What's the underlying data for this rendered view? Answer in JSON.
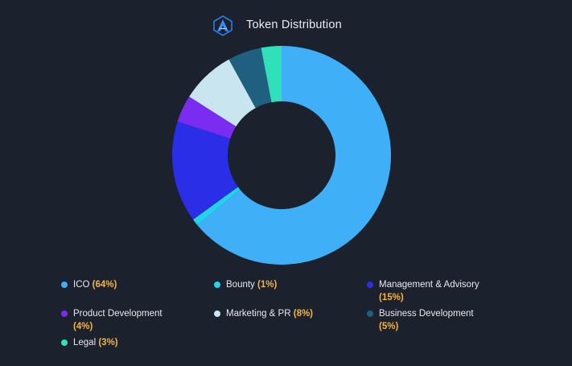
{
  "header": {
    "title": "Token Distribution",
    "logo_icon": "arrow-triangle-logo-icon"
  },
  "chart_data": {
    "type": "pie",
    "title": "Token Distribution",
    "categories": [
      "ICO",
      "Bounty",
      "Management & Advisory",
      "Product Development",
      "Marketing & PR",
      "Business Development",
      "Legal"
    ],
    "values": [
      64,
      1,
      15,
      4,
      8,
      5,
      3
    ],
    "colors": [
      "#3fb0f7",
      "#22d3ee",
      "#2a2ee6",
      "#7a2cf0",
      "#c9e6f0",
      "#1f5f7f",
      "#2fe0b8"
    ],
    "legend_position": "bottom",
    "donut": true
  },
  "legend": [
    {
      "label": "ICO",
      "pct": "(64%)",
      "color": "#3fb0f7"
    },
    {
      "label": "Bounty",
      "pct": "(1%)",
      "color": "#22d3ee"
    },
    {
      "label": "Management & Advisory",
      "pct": "(15%)",
      "color": "#2a2ee6"
    },
    {
      "label": "Product Development",
      "pct": "(4%)",
      "color": "#7a2cf0"
    },
    {
      "label": "Marketing & PR",
      "pct": "(8%)",
      "color": "#c9e6f0"
    },
    {
      "label": "Business Development",
      "pct": "(5%)",
      "color": "#1f5f7f"
    },
    {
      "label": "Legal",
      "pct": "(3%)",
      "color": "#2fe0b8"
    }
  ]
}
